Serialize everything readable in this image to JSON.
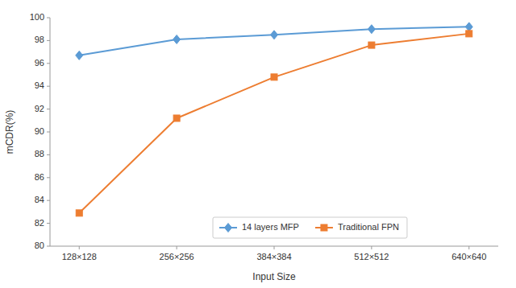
{
  "chart_data": {
    "type": "line",
    "categories": [
      "128×128",
      "256×256",
      "384×384",
      "512×512",
      "640×640"
    ],
    "series": [
      {
        "name": "14 layers MFP",
        "color": "#5b9bd5",
        "marker": "diamond",
        "values": [
          96.7,
          98.1,
          98.5,
          99.0,
          99.2
        ]
      },
      {
        "name": "Traditional FPN",
        "color": "#ed7d31",
        "marker": "square",
        "values": [
          82.9,
          91.2,
          94.8,
          97.6,
          98.6
        ]
      }
    ],
    "xlabel": "Input Size",
    "ylabel": "mCDR(%)",
    "ylim": [
      80,
      100
    ],
    "yticks": [
      80,
      82,
      84,
      86,
      88,
      90,
      92,
      94,
      96,
      98,
      100
    ],
    "grid": false,
    "legend": "bottom"
  }
}
